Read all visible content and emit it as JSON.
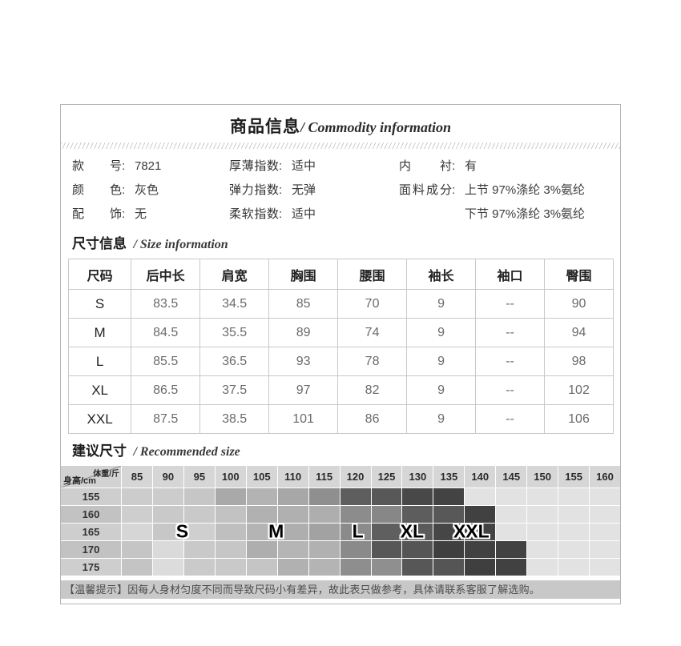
{
  "header": {
    "title_cn": "商品信息",
    "title_en": "/ Commodity information"
  },
  "info": {
    "columns": [
      {
        "items": [
          {
            "label": "款号",
            "value": "7821"
          },
          {
            "label": "颜色",
            "value": "灰色"
          },
          {
            "label": "配饰",
            "value": "无"
          }
        ]
      },
      {
        "items": [
          {
            "label": "厚薄指数",
            "value": "适中"
          },
          {
            "label": "弹力指数",
            "value": "无弹"
          },
          {
            "label": "柔软指数",
            "value": "适中"
          }
        ]
      },
      {
        "items": [
          {
            "label": "内衬",
            "value": "有"
          },
          {
            "label": "面料成分",
            "value": "上节 97%涤纶 3%氨纶"
          },
          {
            "label": "",
            "value": "下节 97%涤纶 3%氨纶"
          }
        ]
      }
    ]
  },
  "size_section": {
    "title_cn": "尺寸信息",
    "title_en": "/ Size information"
  },
  "size_table": {
    "headers": [
      "尺码",
      "后中长",
      "肩宽",
      "胸围",
      "腰围",
      "袖长",
      "袖口",
      "臀围"
    ],
    "rows": [
      [
        "S",
        "83.5",
        "34.5",
        "85",
        "70",
        "9",
        "--",
        "90"
      ],
      [
        "M",
        "84.5",
        "35.5",
        "89",
        "74",
        "9",
        "--",
        "94"
      ],
      [
        "L",
        "85.5",
        "36.5",
        "93",
        "78",
        "9",
        "--",
        "98"
      ],
      [
        "XL",
        "86.5",
        "37.5",
        "97",
        "82",
        "9",
        "--",
        "102"
      ],
      [
        "XXL",
        "87.5",
        "38.5",
        "101",
        "86",
        "9",
        "--",
        "106"
      ]
    ]
  },
  "recommend_section": {
    "title_cn": "建议尺寸",
    "title_en": "/ Recommended size"
  },
  "recommend_grid": {
    "corner_top": "体重/斤",
    "corner_bottom": "身高/cm",
    "weights": [
      "85",
      "90",
      "95",
      "100",
      "105",
      "110",
      "115",
      "120",
      "125",
      "130",
      "135",
      "140",
      "145",
      "150",
      "155",
      "160"
    ],
    "heights": [
      "155",
      "160",
      "165",
      "170",
      "175"
    ],
    "background_color": "#e2e2e2",
    "cells": [
      [
        "#cccccc",
        "#cccccc",
        "#c6c6c6",
        "#a9a9a9",
        "#b3b3b3",
        "#a7a7a7",
        "#8f8f8f",
        "#5e5e5e",
        "#585858",
        "#484848",
        "#434343",
        "#e2e2e2",
        "#e2e2e2",
        "#e2e2e2",
        "#e2e2e2",
        "#e2e2e2"
      ],
      [
        "#cecece",
        "#c9c9c9",
        "#c9c9c9",
        "#c2c2c2",
        "#b1b1b1",
        "#b0b0b0",
        "#aeaeae",
        "#8c8c8c",
        "#878787",
        "#5d5d5d",
        "#585858",
        "#414141",
        "#e2e2e2",
        "#e2e2e2",
        "#e2e2e2",
        "#e2e2e2"
      ],
      [
        "#d6d6d6",
        "#c7c7c7",
        "#cfcfcf",
        "#bfbfbf",
        "#b4b4b4",
        "#aeaeae",
        "#a2a2a2",
        "#8b8b8b",
        "#5f5f5f",
        "#5a5a5a",
        "#464646",
        "#424242",
        "#e2e2e2",
        "#e2e2e2",
        "#e2e2e2",
        "#e2e2e2"
      ],
      [
        "#c5c5c5",
        "#dadada",
        "#c9c9c9",
        "#c6c6c6",
        "#aeaeae",
        "#b5b5b5",
        "#b1b1b1",
        "#8a8a8a",
        "#575757",
        "#555555",
        "#3f3f3f",
        "#414141",
        "#424242",
        "#e2e2e2",
        "#e2e2e2",
        "#e2e2e2"
      ],
      [
        "#c4c4c4",
        "#dcdcdc",
        "#cacaca",
        "#c9c9c9",
        "#c5c5c5",
        "#b1b1b1",
        "#b4b4b4",
        "#8e8e8e",
        "#8f8f8f",
        "#575757",
        "#555555",
        "#3f3f3f",
        "#414141",
        "#e2e2e2",
        "#e2e2e2",
        "#e2e2e2"
      ]
    ],
    "size_labels": [
      {
        "text": "S",
        "left_pct": 21.7
      },
      {
        "text": "M",
        "left_pct": 38.5
      },
      {
        "text": "L",
        "left_pct": 53.1
      },
      {
        "text": "XL",
        "left_pct": 62.8
      },
      {
        "text": "XXL",
        "left_pct": 73.4
      }
    ]
  },
  "notice": {
    "text": "【温馨提示】因每人身材匀度不同而导致尺码小有差异，故此表只做参考，具体请联系客服了解选购。"
  }
}
